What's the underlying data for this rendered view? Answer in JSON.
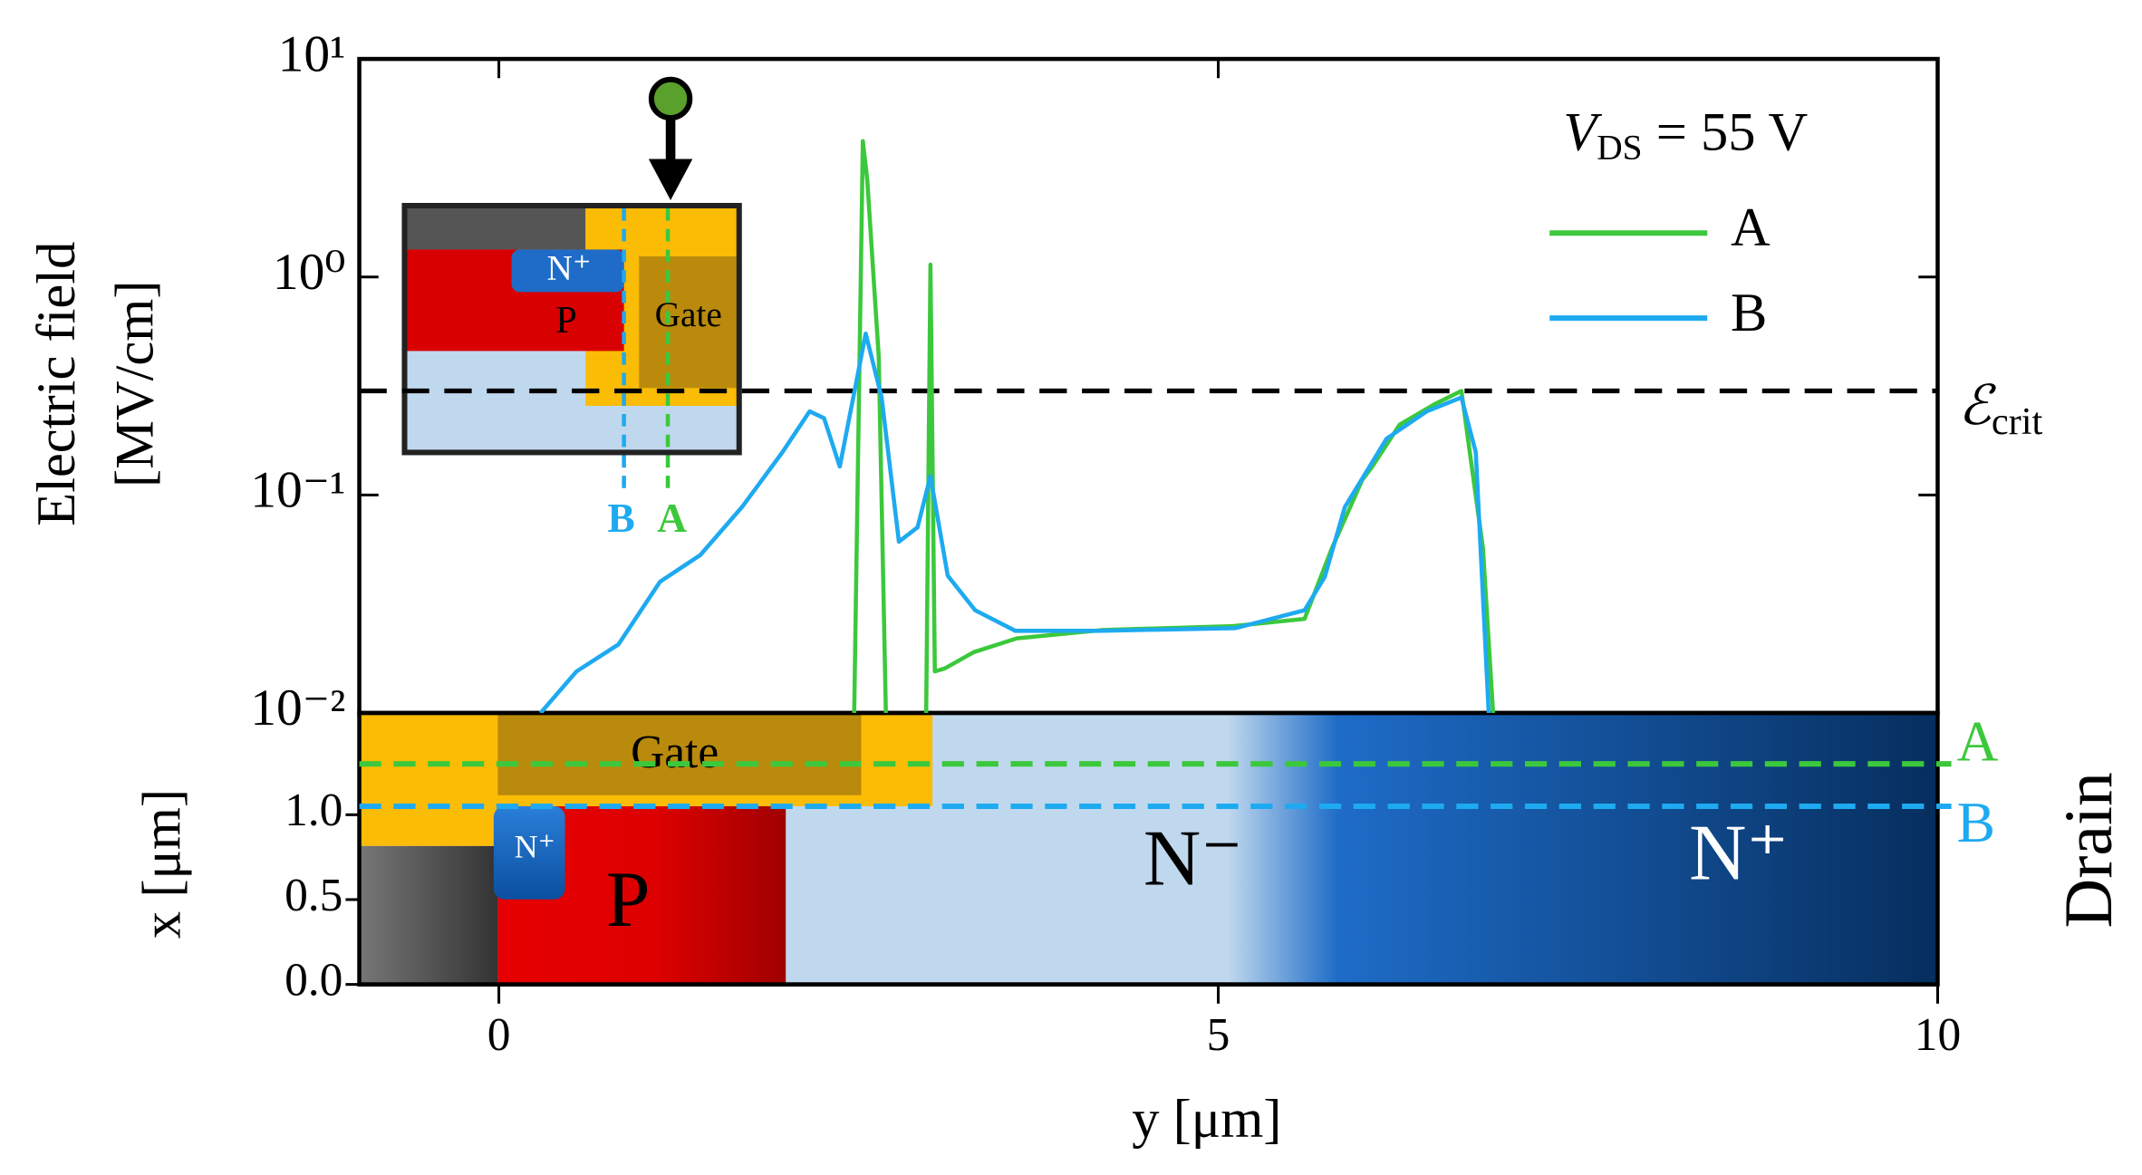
{
  "chart_data": {
    "type": "line",
    "ylabel": [
      "Electric field",
      "[MV/cm]"
    ],
    "xlabel": "y [μm]",
    "log_scale": true,
    "xlim": [
      -0.97,
      10
    ],
    "xticks": [
      0,
      5,
      10
    ],
    "ylim": [
      0.01,
      10
    ],
    "yticks": [
      {
        "value": 10,
        "label": "10¹"
      },
      {
        "value": 1,
        "label": "10⁰"
      },
      {
        "value": 0.1,
        "label": "10⁻¹"
      },
      {
        "value": 0.01,
        "label": "10⁻²"
      }
    ],
    "legend_title": {
      "symbol": "V",
      "subscript": "DS",
      "text": " = 55 V"
    },
    "critical_field": {
      "symbol": "ℰ",
      "subscript": "crit",
      "value": 0.3
    },
    "series": [
      {
        "name": "A",
        "color": "#3cc83c",
        "x": [
          2.47,
          2.53,
          2.56,
          2.64,
          2.69,
          2.8,
          2.97,
          3.0,
          3.03,
          3.1,
          3.3,
          3.6,
          4.2,
          5.1,
          5.6,
          5.79,
          6.0,
          6.07,
          6.26,
          6.5,
          6.69,
          6.84,
          6.91
        ],
        "values": [
          0.01,
          4.2,
          2.8,
          0.43,
          0.01,
          null,
          0.01,
          1.14,
          0.0155,
          0.016,
          0.019,
          0.022,
          0.024,
          0.025,
          0.027,
          0.057,
          0.117,
          0.135,
          0.21,
          0.26,
          0.3,
          0.057,
          0.01
        ]
      },
      {
        "name": "B",
        "color": "#1eaaf0",
        "x": [
          0.29,
          0.54,
          0.83,
          1.12,
          1.4,
          1.69,
          1.97,
          2.16,
          2.26,
          2.37,
          2.55,
          2.66,
          2.78,
          2.91,
          3.0,
          3.12,
          3.31,
          3.59,
          4.17,
          5.12,
          5.6,
          5.74,
          5.88,
          6.17,
          6.45,
          6.69,
          6.79,
          6.88
        ],
        "values": [
          0.01,
          0.0155,
          0.0206,
          0.04,
          0.053,
          0.088,
          0.157,
          0.242,
          0.225,
          0.135,
          0.55,
          0.28,
          0.061,
          0.071,
          0.122,
          0.0426,
          0.0296,
          0.0238,
          0.0238,
          0.0245,
          0.0296,
          0.042,
          0.088,
          0.181,
          0.242,
          0.28,
          0.157,
          0.01
        ]
      }
    ],
    "inset": {
      "labels": [
        "N⁺",
        "P",
        "Gate"
      ],
      "cut_labels": [
        "B",
        "A"
      ]
    },
    "device": {
      "ylabel": "x [μm]",
      "ylim": [
        0,
        1.6
      ],
      "yticks": [
        {
          "value": 0,
          "label": "0.0"
        },
        0.5,
        {
          "value": 1,
          "label": "1.0"
        }
      ],
      "labels": [
        "Gate",
        "N⁺",
        "P",
        "N⁻",
        "N⁺"
      ],
      "side_label": "Drain",
      "cuts": [
        {
          "label": "A",
          "x": 1.3,
          "color": "#3cc83c"
        },
        {
          "label": "B",
          "x": 1.05,
          "color": "#1eaaf0"
        }
      ]
    }
  }
}
